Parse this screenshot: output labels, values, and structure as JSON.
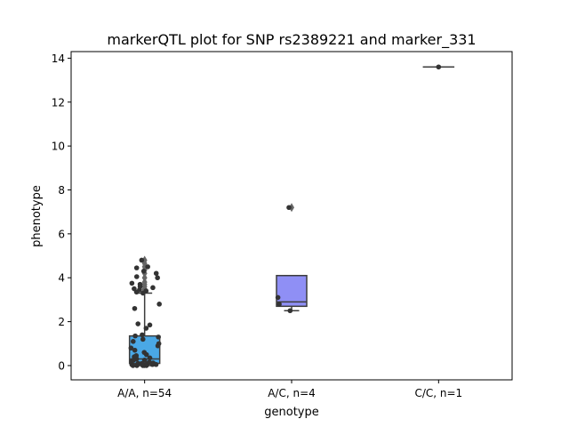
{
  "chart_data": {
    "type": "box",
    "title": "markerQTL plot for SNP rs2389221 and marker_331",
    "xlabel": "genotype",
    "ylabel": "phenotype",
    "ylim": [
      -0.65,
      14.3
    ],
    "yticks": [
      0,
      2,
      4,
      6,
      8,
      10,
      12,
      14
    ],
    "categories": [
      "A/A, n=54",
      "A/C, n=4",
      "C/C, n=1"
    ],
    "colors": {
      "A/A": "#4aa8e6",
      "A/C": "#8f8ff5",
      "C/C": "#ee4fb9",
      "points": "#333333",
      "lines": "#3d3d3d"
    },
    "boxes": [
      {
        "category": "A/A, n=54",
        "whisker_low": 0.0,
        "q1": 0.1,
        "median": 0.3,
        "q3": 1.35,
        "whisker_high": 3.3,
        "outliers": [
          3.4,
          3.45,
          3.5,
          3.6,
          3.7,
          3.8,
          4.0,
          4.2,
          4.35,
          4.5,
          4.65,
          4.8
        ]
      },
      {
        "category": "A/C, n=4",
        "whisker_low": 2.5,
        "q1": 2.7,
        "median": 2.9,
        "q3": 4.1,
        "whisker_high": 4.1,
        "outliers": [
          7.2
        ]
      },
      {
        "category": "C/C, n=1",
        "whisker_low": 13.6,
        "q1": 13.6,
        "median": 13.6,
        "q3": 13.6,
        "whisker_high": 13.6,
        "outliers": []
      }
    ],
    "points": [
      {
        "category": "A/A, n=54",
        "values": [
          0.0,
          0.0,
          0.0,
          0.0,
          0.0,
          0.02,
          0.05,
          0.05,
          0.08,
          0.1,
          0.1,
          0.12,
          0.15,
          0.2,
          0.25,
          0.3,
          0.35,
          0.4,
          0.5,
          0.6,
          0.7,
          0.8,
          0.9,
          1.0,
          1.1,
          1.2,
          1.3,
          1.35,
          1.4,
          1.7,
          1.85,
          1.9,
          2.6,
          2.8,
          3.3,
          3.35,
          3.4,
          3.45,
          3.5,
          3.55,
          3.6,
          3.7,
          3.75,
          4.0,
          4.05,
          4.2,
          4.3,
          4.45,
          4.5,
          4.8,
          0.05,
          0.15,
          0.25,
          0.45
        ]
      },
      {
        "category": "A/C, n=4",
        "values": [
          2.5,
          2.8,
          3.1,
          7.2
        ]
      },
      {
        "category": "C/C, n=1",
        "values": [
          13.6
        ]
      }
    ]
  }
}
